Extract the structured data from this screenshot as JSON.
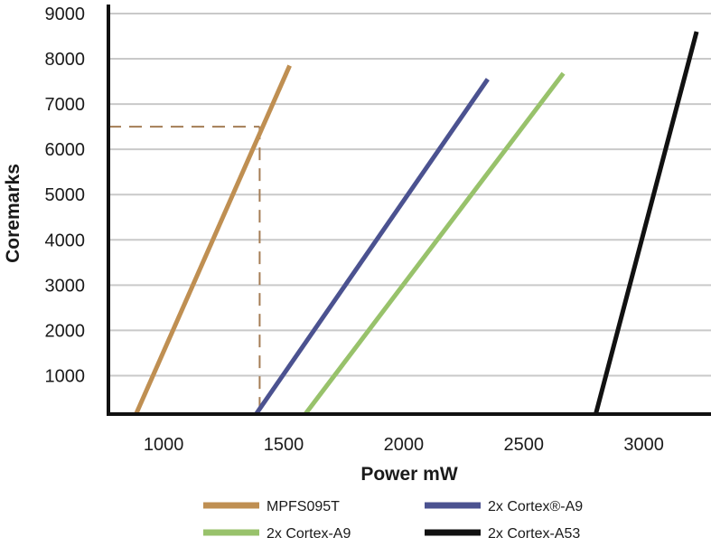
{
  "chart_data": {
    "type": "line",
    "title": "",
    "xlabel": "Power mW",
    "ylabel": "Coremarks",
    "xlim": [
      770,
      3280
    ],
    "ylim": [
      150,
      9000
    ],
    "xticks": [
      1000,
      1500,
      2000,
      2500,
      3000
    ],
    "yticks": [
      1000,
      2000,
      3000,
      4000,
      5000,
      6000,
      7000,
      8000,
      9000
    ],
    "grid": "horizontal",
    "legend_position": "bottom",
    "series": [
      {
        "name": "MPFS095T",
        "color": "#bf8f52",
        "x": [
          885,
          1525
        ],
        "y": [
          150,
          7850
        ]
      },
      {
        "name": "2x Cortex®-A9",
        "color": "#4b5290",
        "x": [
          1385,
          2350
        ],
        "y": [
          150,
          7550
        ]
      },
      {
        "name": "2x Cortex-A9",
        "color": "#98c26b",
        "x": [
          1590,
          2665
        ],
        "y": [
          150,
          7680
        ]
      },
      {
        "name": "2x Cortex-A53",
        "color": "#111111",
        "x": [
          2800,
          3220
        ],
        "y": [
          150,
          8600
        ]
      }
    ],
    "annotations": [
      {
        "type": "reference-lines",
        "style": "dashed",
        "color": "#a47d55",
        "x": 1400,
        "y": 6500
      }
    ]
  }
}
